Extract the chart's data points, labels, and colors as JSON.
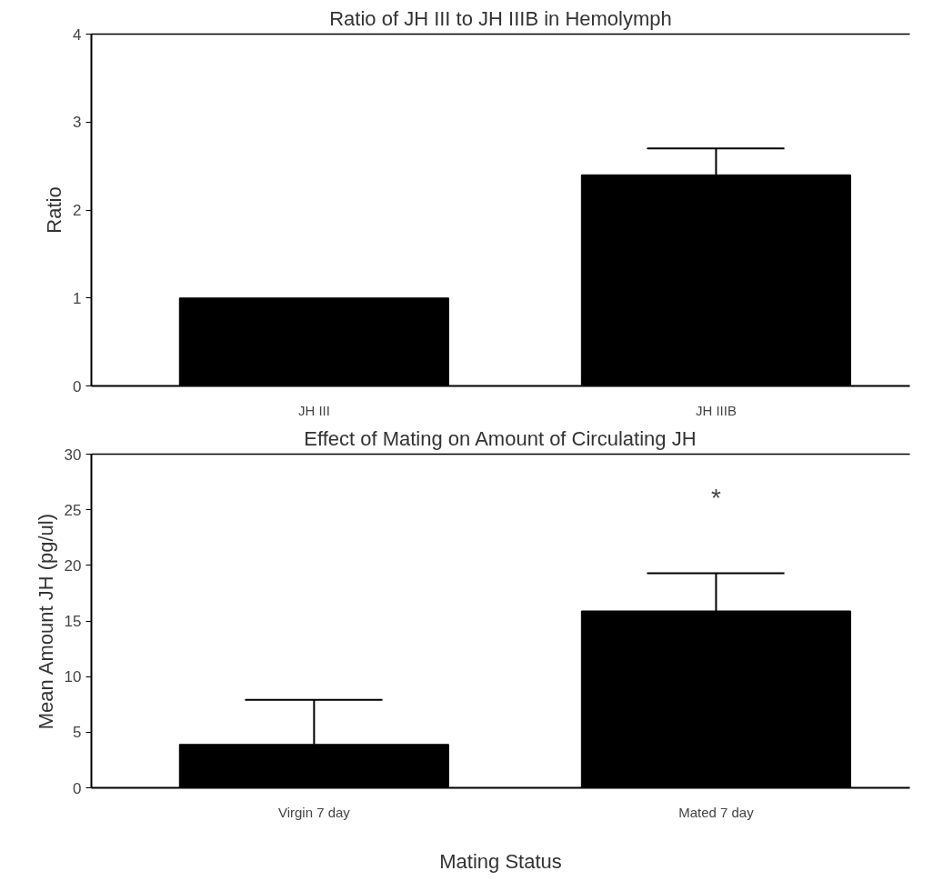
{
  "chart_data": [
    {
      "type": "bar",
      "title": "Ratio of JH III to JH IIIB in Hemolymph",
      "ylabel": "Ratio",
      "categories": [
        "JH III",
        "JH IIIB"
      ],
      "values": [
        1.0,
        2.4
      ],
      "errors": [
        null,
        [
          2.4,
          2.7
        ]
      ],
      "color": "#000000",
      "ylim": [
        0,
        4
      ],
      "yticks": [
        0,
        1,
        2,
        3,
        4
      ],
      "grid": false
    },
    {
      "type": "bar",
      "title": "Effect of Mating on Amount of Circulating JH",
      "xlabel": "Mating Status",
      "ylabel": "Mean Amount JH (pg/ul)",
      "categories": [
        "Virgin 7 day",
        "Mated 7 day"
      ],
      "values": [
        3.9,
        15.9
      ],
      "errors": [
        [
          3.9,
          7.9
        ],
        [
          15.9,
          19.3
        ]
      ],
      "color": "#000000",
      "ylim": [
        0,
        30
      ],
      "yticks": [
        0,
        5,
        10,
        15,
        20,
        25,
        30
      ],
      "grid": false,
      "annotations": [
        "*"
      ]
    }
  ]
}
